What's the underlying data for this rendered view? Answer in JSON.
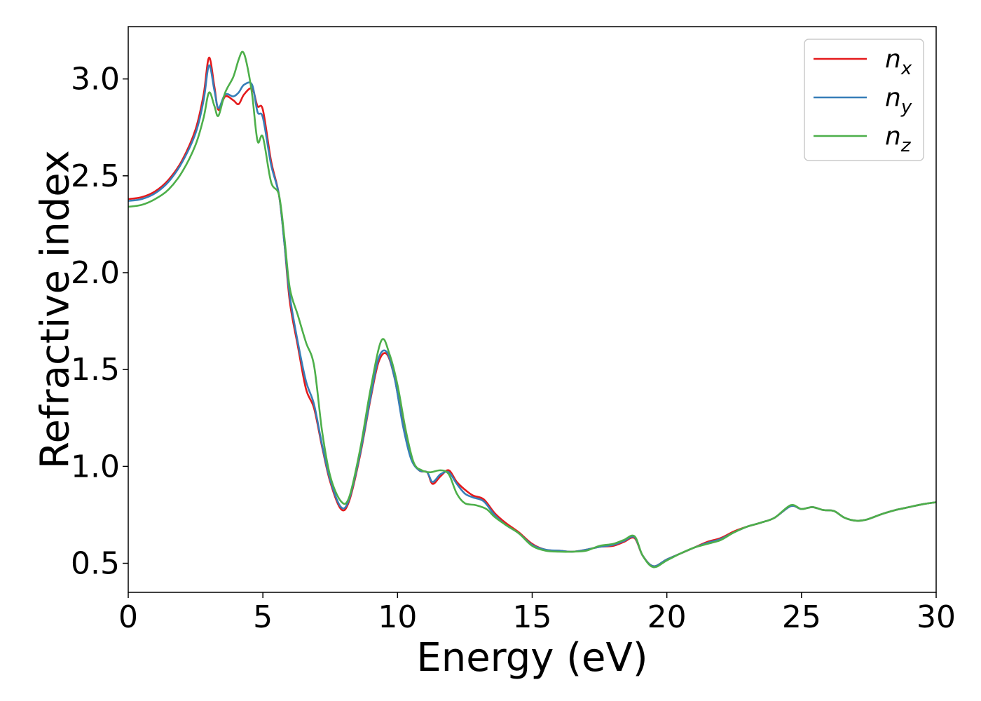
{
  "chart_data": {
    "type": "line",
    "title": "",
    "xlabel": "Energy (eV)",
    "ylabel": "Refractive index",
    "xlim": [
      0,
      30
    ],
    "ylim": [
      0.35,
      3.27
    ],
    "xticks": [
      0,
      5,
      10,
      15,
      20,
      25,
      30
    ],
    "xtick_labels": [
      "0",
      "5",
      "10",
      "15",
      "20",
      "25",
      "30"
    ],
    "yticks": [
      0.5,
      1.0,
      1.5,
      2.0,
      2.5,
      3.0
    ],
    "ytick_labels": [
      "0.5",
      "1.0",
      "1.5",
      "2.0",
      "2.5",
      "3.0"
    ],
    "grid": false,
    "legend_position": "top-right",
    "series": [
      {
        "name": "n_x",
        "label_main": "n",
        "label_sub": "x",
        "color": "#e41a1c",
        "points": [
          [
            0,
            2.38
          ],
          [
            0.5,
            2.39
          ],
          [
            1.0,
            2.42
          ],
          [
            1.5,
            2.48
          ],
          [
            2.0,
            2.58
          ],
          [
            2.5,
            2.74
          ],
          [
            2.8,
            2.92
          ],
          [
            3.0,
            3.11
          ],
          [
            3.2,
            2.96
          ],
          [
            3.35,
            2.84
          ],
          [
            3.6,
            2.91
          ],
          [
            3.9,
            2.89
          ],
          [
            4.1,
            2.87
          ],
          [
            4.3,
            2.92
          ],
          [
            4.6,
            2.95
          ],
          [
            4.8,
            2.86
          ],
          [
            5.0,
            2.84
          ],
          [
            5.3,
            2.58
          ],
          [
            5.6,
            2.4
          ],
          [
            5.8,
            2.15
          ],
          [
            6.0,
            1.85
          ],
          [
            6.3,
            1.62
          ],
          [
            6.6,
            1.4
          ],
          [
            6.9,
            1.3
          ],
          [
            7.2,
            1.1
          ],
          [
            7.5,
            0.92
          ],
          [
            7.9,
            0.78
          ],
          [
            8.2,
            0.82
          ],
          [
            8.6,
            1.05
          ],
          [
            9.0,
            1.35
          ],
          [
            9.3,
            1.54
          ],
          [
            9.6,
            1.58
          ],
          [
            9.9,
            1.45
          ],
          [
            10.2,
            1.22
          ],
          [
            10.5,
            1.05
          ],
          [
            10.8,
            0.98
          ],
          [
            11.1,
            0.97
          ],
          [
            11.3,
            0.91
          ],
          [
            11.6,
            0.95
          ],
          [
            11.9,
            0.98
          ],
          [
            12.2,
            0.92
          ],
          [
            12.5,
            0.88
          ],
          [
            12.8,
            0.85
          ],
          [
            13.2,
            0.83
          ],
          [
            13.6,
            0.76
          ],
          [
            14.0,
            0.71
          ],
          [
            14.5,
            0.66
          ],
          [
            15.0,
            0.6
          ],
          [
            15.5,
            0.57
          ],
          [
            16.0,
            0.565
          ],
          [
            16.5,
            0.56
          ],
          [
            17.0,
            0.57
          ],
          [
            17.5,
            0.585
          ],
          [
            18.0,
            0.59
          ],
          [
            18.4,
            0.61
          ],
          [
            18.8,
            0.63
          ],
          [
            19.1,
            0.54
          ],
          [
            19.5,
            0.485
          ],
          [
            20.0,
            0.52
          ],
          [
            20.5,
            0.55
          ],
          [
            21.0,
            0.58
          ],
          [
            21.5,
            0.61
          ],
          [
            22.0,
            0.63
          ],
          [
            22.5,
            0.665
          ],
          [
            23.0,
            0.69
          ],
          [
            23.5,
            0.71
          ],
          [
            24.0,
            0.735
          ],
          [
            24.6,
            0.795
          ],
          [
            25.0,
            0.78
          ],
          [
            25.4,
            0.79
          ],
          [
            25.8,
            0.775
          ],
          [
            26.2,
            0.77
          ],
          [
            26.6,
            0.735
          ],
          [
            27.0,
            0.72
          ],
          [
            27.4,
            0.725
          ],
          [
            28.0,
            0.755
          ],
          [
            28.5,
            0.775
          ],
          [
            29.0,
            0.79
          ],
          [
            29.5,
            0.805
          ],
          [
            30.0,
            0.815
          ]
        ]
      },
      {
        "name": "n_y",
        "label_main": "n",
        "label_sub": "y",
        "color": "#377eb8",
        "points": [
          [
            0,
            2.37
          ],
          [
            0.5,
            2.38
          ],
          [
            1.0,
            2.41
          ],
          [
            1.5,
            2.47
          ],
          [
            2.0,
            2.57
          ],
          [
            2.5,
            2.72
          ],
          [
            2.8,
            2.89
          ],
          [
            3.0,
            3.07
          ],
          [
            3.2,
            2.94
          ],
          [
            3.35,
            2.85
          ],
          [
            3.6,
            2.92
          ],
          [
            3.9,
            2.91
          ],
          [
            4.1,
            2.93
          ],
          [
            4.3,
            2.97
          ],
          [
            4.6,
            2.97
          ],
          [
            4.8,
            2.83
          ],
          [
            5.0,
            2.8
          ],
          [
            5.3,
            2.56
          ],
          [
            5.6,
            2.4
          ],
          [
            5.8,
            2.15
          ],
          [
            6.0,
            1.88
          ],
          [
            6.3,
            1.64
          ],
          [
            6.6,
            1.44
          ],
          [
            6.9,
            1.32
          ],
          [
            7.2,
            1.11
          ],
          [
            7.5,
            0.93
          ],
          [
            7.9,
            0.79
          ],
          [
            8.2,
            0.83
          ],
          [
            8.6,
            1.06
          ],
          [
            9.0,
            1.36
          ],
          [
            9.3,
            1.56
          ],
          [
            9.6,
            1.59
          ],
          [
            9.9,
            1.45
          ],
          [
            10.2,
            1.21
          ],
          [
            10.5,
            1.04
          ],
          [
            10.8,
            0.98
          ],
          [
            11.1,
            0.97
          ],
          [
            11.3,
            0.92
          ],
          [
            11.6,
            0.96
          ],
          [
            11.9,
            0.97
          ],
          [
            12.2,
            0.91
          ],
          [
            12.5,
            0.86
          ],
          [
            12.8,
            0.84
          ],
          [
            13.2,
            0.82
          ],
          [
            13.6,
            0.75
          ],
          [
            14.0,
            0.7
          ],
          [
            14.5,
            0.655
          ],
          [
            15.0,
            0.595
          ],
          [
            15.5,
            0.57
          ],
          [
            16.0,
            0.565
          ],
          [
            16.5,
            0.56
          ],
          [
            17.0,
            0.57
          ],
          [
            17.5,
            0.585
          ],
          [
            18.0,
            0.595
          ],
          [
            18.4,
            0.615
          ],
          [
            18.8,
            0.635
          ],
          [
            19.1,
            0.54
          ],
          [
            19.5,
            0.485
          ],
          [
            20.0,
            0.52
          ],
          [
            20.5,
            0.55
          ],
          [
            21.0,
            0.58
          ],
          [
            21.5,
            0.605
          ],
          [
            22.0,
            0.625
          ],
          [
            22.5,
            0.66
          ],
          [
            23.0,
            0.69
          ],
          [
            23.5,
            0.71
          ],
          [
            24.0,
            0.735
          ],
          [
            24.6,
            0.795
          ],
          [
            25.0,
            0.78
          ],
          [
            25.4,
            0.79
          ],
          [
            25.8,
            0.775
          ],
          [
            26.2,
            0.77
          ],
          [
            26.6,
            0.735
          ],
          [
            27.0,
            0.72
          ],
          [
            27.4,
            0.725
          ],
          [
            28.0,
            0.755
          ],
          [
            28.5,
            0.775
          ],
          [
            29.0,
            0.79
          ],
          [
            29.5,
            0.805
          ],
          [
            30.0,
            0.815
          ]
        ]
      },
      {
        "name": "n_z",
        "label_main": "n",
        "label_sub": "z",
        "color": "#4daf4a",
        "points": [
          [
            0,
            2.34
          ],
          [
            0.5,
            2.35
          ],
          [
            1.0,
            2.38
          ],
          [
            1.5,
            2.43
          ],
          [
            2.0,
            2.52
          ],
          [
            2.5,
            2.66
          ],
          [
            2.8,
            2.8
          ],
          [
            3.0,
            2.93
          ],
          [
            3.2,
            2.86
          ],
          [
            3.35,
            2.81
          ],
          [
            3.6,
            2.93
          ],
          [
            3.9,
            3.01
          ],
          [
            4.1,
            3.1
          ],
          [
            4.25,
            3.14
          ],
          [
            4.4,
            3.08
          ],
          [
            4.6,
            2.92
          ],
          [
            4.8,
            2.68
          ],
          [
            5.0,
            2.7
          ],
          [
            5.3,
            2.47
          ],
          [
            5.6,
            2.4
          ],
          [
            5.8,
            2.18
          ],
          [
            6.0,
            1.92
          ],
          [
            6.3,
            1.78
          ],
          [
            6.6,
            1.64
          ],
          [
            6.9,
            1.52
          ],
          [
            7.2,
            1.18
          ],
          [
            7.5,
            0.95
          ],
          [
            7.9,
            0.82
          ],
          [
            8.2,
            0.84
          ],
          [
            8.6,
            1.08
          ],
          [
            9.0,
            1.4
          ],
          [
            9.4,
            1.65
          ],
          [
            9.7,
            1.58
          ],
          [
            10.0,
            1.42
          ],
          [
            10.3,
            1.19
          ],
          [
            10.6,
            1.02
          ],
          [
            10.9,
            0.98
          ],
          [
            11.2,
            0.97
          ],
          [
            11.6,
            0.98
          ],
          [
            11.9,
            0.96
          ],
          [
            12.2,
            0.86
          ],
          [
            12.5,
            0.81
          ],
          [
            12.9,
            0.8
          ],
          [
            13.3,
            0.78
          ],
          [
            13.6,
            0.74
          ],
          [
            14.0,
            0.7
          ],
          [
            14.5,
            0.655
          ],
          [
            15.0,
            0.59
          ],
          [
            15.5,
            0.565
          ],
          [
            16.0,
            0.56
          ],
          [
            16.5,
            0.56
          ],
          [
            17.0,
            0.565
          ],
          [
            17.5,
            0.59
          ],
          [
            18.0,
            0.6
          ],
          [
            18.4,
            0.62
          ],
          [
            18.8,
            0.64
          ],
          [
            19.1,
            0.54
          ],
          [
            19.5,
            0.48
          ],
          [
            20.0,
            0.515
          ],
          [
            20.5,
            0.55
          ],
          [
            21.0,
            0.58
          ],
          [
            21.5,
            0.6
          ],
          [
            22.0,
            0.62
          ],
          [
            22.5,
            0.66
          ],
          [
            23.0,
            0.69
          ],
          [
            23.5,
            0.71
          ],
          [
            24.0,
            0.735
          ],
          [
            24.6,
            0.8
          ],
          [
            25.0,
            0.78
          ],
          [
            25.4,
            0.79
          ],
          [
            25.8,
            0.775
          ],
          [
            26.2,
            0.77
          ],
          [
            26.6,
            0.735
          ],
          [
            27.0,
            0.72
          ],
          [
            27.4,
            0.725
          ],
          [
            28.0,
            0.755
          ],
          [
            28.5,
            0.775
          ],
          [
            29.0,
            0.79
          ],
          [
            29.5,
            0.805
          ],
          [
            30.0,
            0.815
          ]
        ]
      }
    ]
  }
}
